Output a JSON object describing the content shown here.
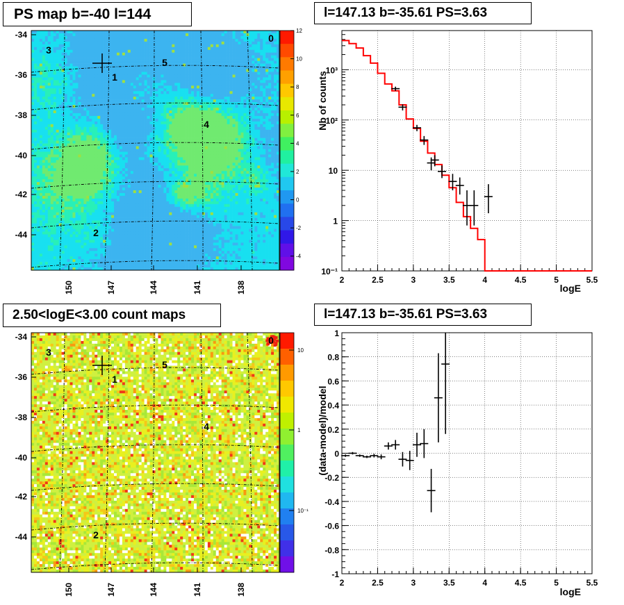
{
  "titles": {
    "map_top": "PS map b=-40 l=144",
    "spec_top": "l=147.13 b=-35.61 PS=3.63",
    "map_bottom": "2.50<logE<3.00 count maps",
    "spec_bottom": "l=147.13 b=-35.61 PS=3.63"
  },
  "maps": {
    "y_ticks": [
      "-34",
      "-36",
      "-38",
      "-40",
      "-42",
      "-44"
    ],
    "x_ticks": [
      "150",
      "147",
      "144",
      "141",
      "138"
    ],
    "markers": [
      "0",
      "1",
      "2",
      "3",
      "4",
      "5"
    ],
    "colorbar_top": [
      "12",
      "10",
      "8",
      "6",
      "4",
      "2",
      "0",
      "-2",
      "-4"
    ],
    "colorbar_bottom": [
      "10",
      "1",
      "10⁻¹"
    ]
  },
  "chart_data": [
    {
      "type": "heatmap",
      "title": "PS map b=-40 l=144",
      "xlabel": "",
      "ylabel": "",
      "x_tick_labels": [
        "150",
        "147",
        "144",
        "141",
        "138"
      ],
      "y_tick_labels": [
        "-34",
        "-36",
        "-38",
        "-40",
        "-42",
        "-44"
      ],
      "color_range": [
        -5,
        12
      ],
      "colorbar_ticks": [
        12,
        10,
        8,
        6,
        4,
        2,
        0,
        -2,
        -4
      ],
      "source_markers": [
        "0",
        "1",
        "2",
        "3",
        "4",
        "5"
      ],
      "grid": true
    },
    {
      "type": "line",
      "title": "l=147.13 b=-35.61 PS=3.63",
      "xlabel": "logE",
      "ylabel": "Nb of counts",
      "xlim": [
        2,
        5.5
      ],
      "ylim": [
        0.1,
        6000
      ],
      "yscale": "log",
      "grid": true,
      "x_tick_labels": [
        "2",
        "2.5",
        "3",
        "3.5",
        "4",
        "4.5",
        "5",
        "5.5"
      ],
      "y_tick_labels": [
        "10⁻¹",
        "1",
        "10",
        "10²",
        "10³"
      ],
      "model_steps": {
        "color": "#ff0000",
        "edges": [
          2.0,
          2.1,
          2.2,
          2.3,
          2.4,
          2.5,
          2.6,
          2.7,
          2.8,
          2.9,
          3.0,
          3.1,
          3.2,
          3.3,
          3.4,
          3.5,
          3.6,
          3.7,
          3.8,
          3.9,
          4.0,
          4.1,
          4.2,
          4.3,
          4.4,
          4.5,
          4.6,
          4.7,
          4.8,
          4.9,
          5.0,
          5.1,
          5.2,
          5.3,
          5.4,
          5.5
        ],
        "values": [
          3800,
          3300,
          2700,
          1900,
          1350,
          850,
          520,
          380,
          200,
          105,
          68,
          38,
          22,
          13,
          8,
          4.5,
          2.3,
          1.2,
          0.7,
          0.42,
          0.1,
          0.1,
          0.1,
          0.1,
          0.1,
          0.1,
          0.1,
          0.1,
          0.1,
          0.1,
          0.1,
          0.1,
          0.1,
          0.1,
          0.1
        ]
      },
      "data_points": {
        "x": [
          2.75,
          2.85,
          3.05,
          3.15,
          3.25,
          3.3,
          3.4,
          3.55,
          3.65,
          3.75,
          3.85,
          4.05
        ],
        "y": [
          420,
          180,
          70,
          40,
          14,
          16,
          9.5,
          6,
          5,
          2,
          2,
          3
        ],
        "y_err_low": [
          380,
          155,
          60,
          32,
          10,
          12,
          7,
          4,
          3.3,
          0.8,
          0.8,
          1.4
        ],
        "y_err_high": [
          460,
          205,
          80,
          48,
          18,
          20,
          12.5,
          8.5,
          7.2,
          4,
          4,
          5.3
        ]
      }
    },
    {
      "type": "heatmap",
      "title": "2.50<logE<3.00 count maps",
      "xlabel": "",
      "ylabel": "",
      "x_tick_labels": [
        "150",
        "147",
        "144",
        "141",
        "138"
      ],
      "y_tick_labels": [
        "-34",
        "-36",
        "-38",
        "-40",
        "-42",
        "-44"
      ],
      "color_scale": "log",
      "colorbar_ticks": [
        "10",
        "1",
        "10⁻¹"
      ],
      "source_markers": [
        "0",
        "1",
        "2",
        "3",
        "4",
        "5"
      ],
      "grid": true
    },
    {
      "type": "scatter",
      "title": "l=147.13 b=-35.61 PS=3.63",
      "xlabel": "logE",
      "ylabel": "(data-model)/model",
      "xlim": [
        2,
        5.5
      ],
      "ylim": [
        -1,
        1
      ],
      "grid": true,
      "x_tick_labels": [
        "2",
        "2.5",
        "3",
        "3.5",
        "4",
        "4.5",
        "5",
        "5.5"
      ],
      "y_tick_labels": [
        "-1",
        "-0.8",
        "-0.6",
        "-0.4",
        "-0.2",
        "0",
        "0.2",
        "0.4",
        "0.6",
        "0.8",
        "1"
      ],
      "x": [
        2.05,
        2.15,
        2.25,
        2.35,
        2.45,
        2.55,
        2.65,
        2.75,
        2.85,
        2.95,
        3.05,
        3.15,
        3.25,
        3.35,
        3.45
      ],
      "y": [
        -0.02,
        0.0,
        -0.02,
        -0.03,
        -0.02,
        -0.03,
        0.06,
        0.07,
        -0.05,
        -0.06,
        0.07,
        0.08,
        -0.31,
        0.46,
        0.74
      ],
      "y_err": [
        0.01,
        0.01,
        0.01,
        0.01,
        0.015,
        0.02,
        0.03,
        0.04,
        0.06,
        0.08,
        0.1,
        0.12,
        0.18,
        0.37,
        0.58
      ]
    }
  ]
}
